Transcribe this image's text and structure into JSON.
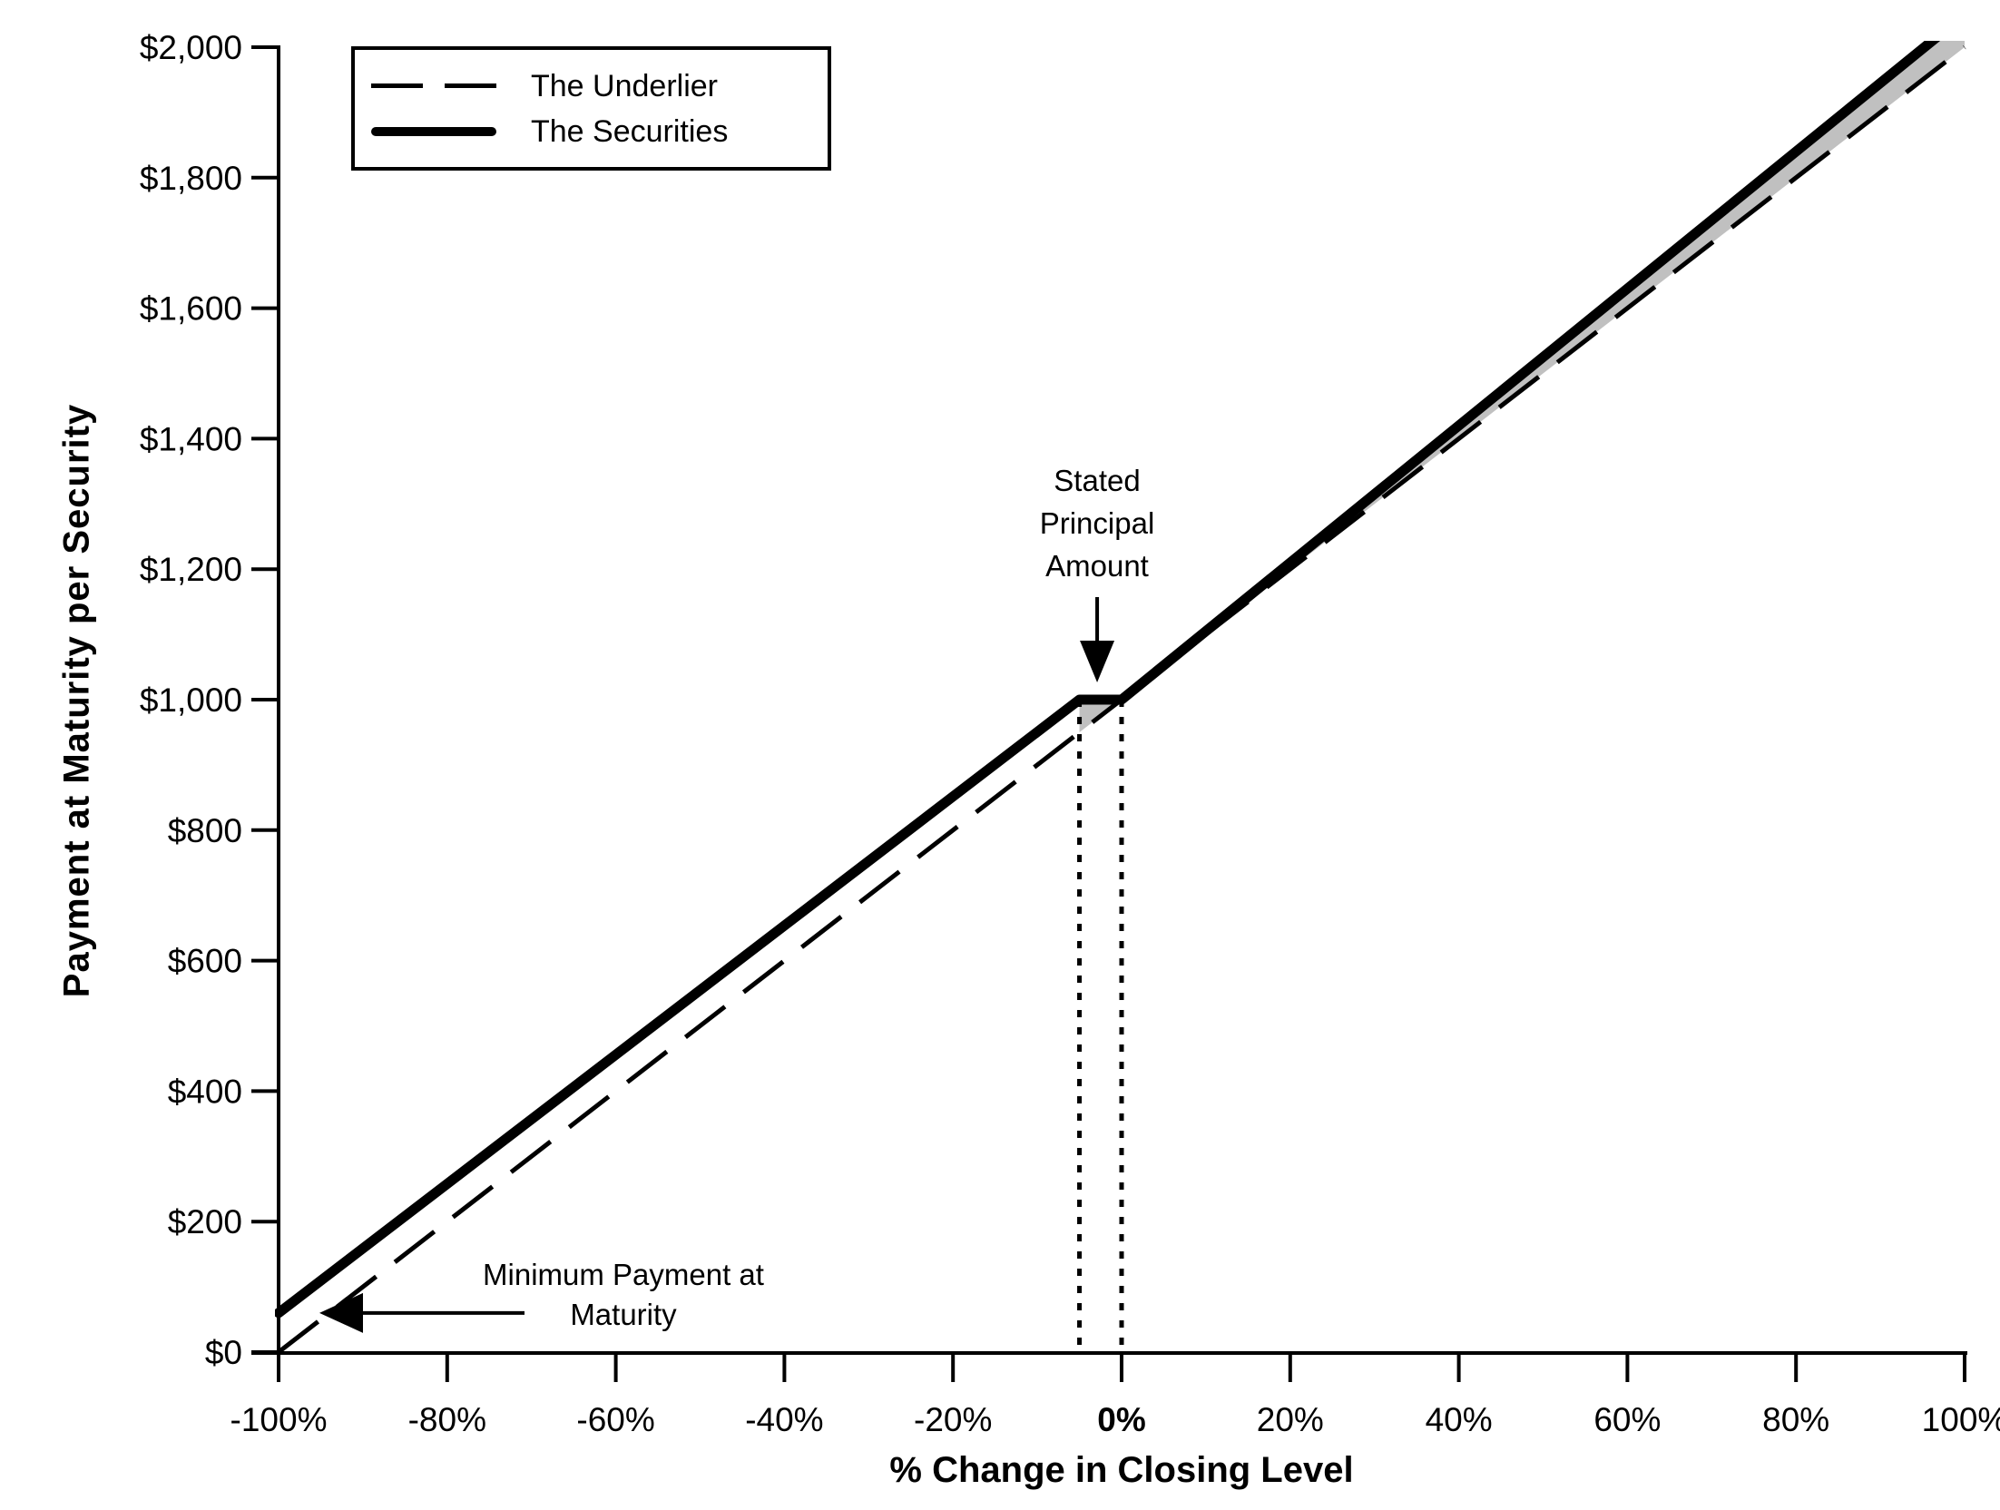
{
  "chart_data": {
    "type": "line",
    "title": "",
    "xlabel": "% Change in Closing Level",
    "ylabel": "Payment at Maturity per Security",
    "xlim": [
      -100,
      100
    ],
    "ylim": [
      0,
      2000
    ],
    "grid": false,
    "x_ticks": {
      "values": [
        -100,
        -80,
        -60,
        -40,
        -20,
        0,
        20,
        40,
        60,
        80,
        100
      ],
      "labels": [
        "-100%",
        "-80%",
        "-60%",
        "-40%",
        "-20%",
        "0%",
        "20%",
        "40%",
        "60%",
        "80%",
        "100%"
      ],
      "emphasized_label": "0%"
    },
    "y_ticks": {
      "values": [
        0,
        200,
        400,
        600,
        800,
        1000,
        1200,
        1400,
        1600,
        1800,
        2000
      ],
      "labels": [
        "$0",
        "$200",
        "$400",
        "$600",
        "$800",
        "$1,000",
        "$1,200",
        "$1,400",
        "$1,600",
        "$1,800",
        "$2,000"
      ]
    },
    "legend": {
      "position": "top-left",
      "entries": [
        {
          "name": "The Underlier",
          "style": "dashed"
        },
        {
          "name": "The Securities",
          "style": "solid-thick"
        }
      ]
    },
    "series": [
      {
        "name": "The Underlier",
        "style": "dashed",
        "points": [
          [
            -100,
            0
          ],
          [
            100,
            2000
          ]
        ]
      },
      {
        "name": "The Securities",
        "style": "solid",
        "points": [
          [
            -100,
            60
          ],
          [
            -5,
            1000
          ],
          [
            0,
            1000
          ],
          [
            100,
            2050
          ]
        ]
      }
    ],
    "guides": {
      "dotted_vlines_x": [
        -5,
        0
      ],
      "guide_top_value": 1000
    },
    "shading": {
      "color": "#c0c0c0",
      "regions": [
        [
          [
            -5,
            1000
          ],
          [
            0,
            1000
          ],
          [
            -5,
            950
          ]
        ],
        [
          [
            0,
            1000
          ],
          [
            100,
            2050
          ],
          [
            100,
            2000
          ]
        ]
      ]
    },
    "annotations": [
      {
        "id": "stated-principal",
        "lines": [
          "Stated",
          "Principal",
          "Amount"
        ],
        "arrow": "down",
        "target": [
          -2.9,
          1000
        ]
      },
      {
        "id": "minimum-payment",
        "lines": [
          "Minimum Payment at",
          "Maturity"
        ],
        "arrow": "left",
        "target": [
          -100,
          60
        ]
      }
    ]
  },
  "colors": {
    "line": "#000000",
    "shade": "#c0c0c0",
    "background": "#ffffff"
  }
}
